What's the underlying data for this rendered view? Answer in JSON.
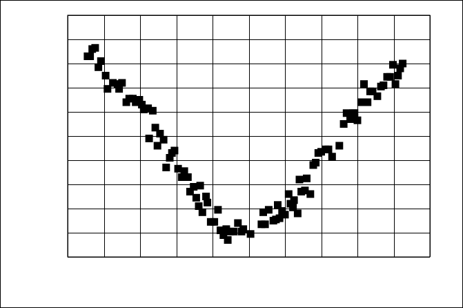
{
  "chart_data": {
    "type": "scatter",
    "title": "",
    "xlabel": "",
    "ylabel": "",
    "xlim": [
      0,
      10
    ],
    "ylim": [
      0,
      10
    ],
    "grid": true,
    "x_tick_values": [
      0,
      1,
      2,
      3,
      4,
      5,
      6,
      7,
      8,
      9,
      10
    ],
    "y_tick_values": [
      0,
      1,
      2,
      3,
      4,
      5,
      6,
      7,
      8,
      9,
      10
    ],
    "tick_labels_visible": false,
    "marker": "square",
    "colors": {
      "marker": "#000000",
      "grid": "#000000",
      "frame": "#000000",
      "background": "#ffffff"
    },
    "series": [
      {
        "points": [
          [
            0.55,
            8.3
          ],
          [
            0.62,
            8.3
          ],
          [
            0.68,
            8.6
          ],
          [
            0.76,
            8.65
          ],
          [
            0.85,
            7.85
          ],
          [
            0.92,
            8.1
          ],
          [
            1.05,
            7.5
          ],
          [
            1.1,
            6.95
          ],
          [
            1.25,
            7.2
          ],
          [
            1.38,
            7.15
          ],
          [
            1.42,
            6.95
          ],
          [
            1.5,
            7.2
          ],
          [
            1.62,
            6.4
          ],
          [
            1.7,
            6.55
          ],
          [
            1.8,
            6.55
          ],
          [
            1.88,
            6.4
          ],
          [
            1.98,
            6.5
          ],
          [
            2.05,
            6.3
          ],
          [
            2.1,
            6.1
          ],
          [
            2.22,
            6.15
          ],
          [
            2.25,
            4.9
          ],
          [
            2.35,
            6.05
          ],
          [
            2.42,
            5.35
          ],
          [
            2.48,
            4.6
          ],
          [
            2.55,
            5.1
          ],
          [
            2.65,
            4.85
          ],
          [
            2.72,
            3.7
          ],
          [
            2.82,
            4.1
          ],
          [
            2.88,
            4.3
          ],
          [
            2.95,
            4.4
          ],
          [
            3.05,
            3.65
          ],
          [
            3.15,
            3.3
          ],
          [
            3.22,
            3.55
          ],
          [
            3.32,
            3.3
          ],
          [
            3.38,
            2.7
          ],
          [
            3.48,
            2.9
          ],
          [
            3.55,
            2.45
          ],
          [
            3.62,
            2.1
          ],
          [
            3.66,
            2.95
          ],
          [
            3.72,
            1.85
          ],
          [
            3.82,
            2.5
          ],
          [
            3.86,
            2.25
          ],
          [
            3.95,
            1.45
          ],
          [
            4.05,
            1.45
          ],
          [
            4.15,
            1.95
          ],
          [
            4.22,
            1.1
          ],
          [
            4.3,
            0.9
          ],
          [
            4.38,
            1.15
          ],
          [
            4.42,
            0.7
          ],
          [
            4.48,
            1.05
          ],
          [
            4.58,
            1.05
          ],
          [
            4.7,
            1.4
          ],
          [
            4.8,
            1.05
          ],
          [
            4.85,
            1.15
          ],
          [
            5.05,
            0.95
          ],
          [
            5.35,
            1.35
          ],
          [
            5.4,
            1.85
          ],
          [
            5.45,
            1.35
          ],
          [
            5.55,
            1.95
          ],
          [
            5.68,
            1.5
          ],
          [
            5.75,
            1.55
          ],
          [
            5.8,
            2.15
          ],
          [
            5.85,
            1.6
          ],
          [
            5.92,
            1.9
          ],
          [
            6.0,
            1.75
          ],
          [
            6.1,
            2.6
          ],
          [
            6.15,
            2.2
          ],
          [
            6.22,
            2.05
          ],
          [
            6.25,
            2.35
          ],
          [
            6.35,
            1.8
          ],
          [
            6.4,
            3.2
          ],
          [
            6.45,
            2.7
          ],
          [
            6.55,
            2.75
          ],
          [
            6.6,
            3.25
          ],
          [
            6.7,
            2.6
          ],
          [
            6.78,
            3.8
          ],
          [
            6.85,
            3.9
          ],
          [
            6.92,
            4.3
          ],
          [
            7.0,
            4.35
          ],
          [
            7.12,
            4.45
          ],
          [
            7.2,
            4.45
          ],
          [
            7.3,
            4.15
          ],
          [
            7.5,
            4.6
          ],
          [
            7.62,
            5.5
          ],
          [
            7.7,
            5.95
          ],
          [
            7.8,
            5.7
          ],
          [
            7.88,
            5.95
          ],
          [
            7.92,
            5.95
          ],
          [
            8.0,
            5.65
          ],
          [
            8.1,
            6.4
          ],
          [
            8.18,
            7.15
          ],
          [
            8.22,
            6.4
          ],
          [
            8.28,
            6.4
          ],
          [
            8.35,
            6.85
          ],
          [
            8.42,
            6.85
          ],
          [
            8.55,
            6.65
          ],
          [
            8.65,
            7.05
          ],
          [
            8.72,
            7.1
          ],
          [
            8.82,
            7.45
          ],
          [
            8.9,
            7.45
          ],
          [
            8.98,
            7.95
          ],
          [
            9.05,
            7.15
          ],
          [
            9.12,
            7.5
          ],
          [
            9.18,
            7.8
          ],
          [
            9.25,
            8.0
          ]
        ]
      }
    ]
  }
}
